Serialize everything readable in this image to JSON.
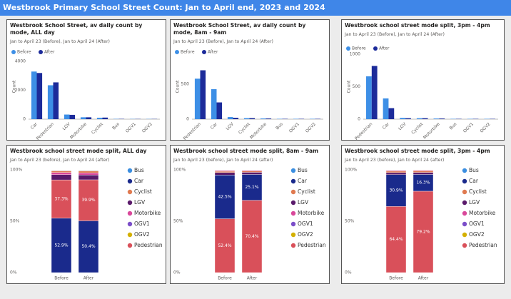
{
  "page_title": "Westbrook Primary School Street Count: Jan to April end, 2023 and 2024",
  "chart_data": [
    {
      "type": "bar",
      "title": "Westbrook School Street, av daily count by mode, ALL day",
      "subtitle": "Jan to April 23 (Before), Jan to April 24 (After)",
      "y_label": "Count",
      "categories": [
        "Car",
        "Pedestrian",
        "LGV",
        "Motorbike",
        "Cyclist",
        "Bus",
        "OGV1",
        "OGV2"
      ],
      "series": [
        {
          "name": "Before",
          "color": "#3d8fe6",
          "values": [
            3300,
            2350,
            320,
            130,
            100,
            20,
            15,
            15
          ]
        },
        {
          "name": "After",
          "color": "#1c2b9a",
          "values": [
            3200,
            2550,
            300,
            130,
            110,
            20,
            15,
            15
          ]
        }
      ],
      "ylim": [
        0,
        4500
      ],
      "yticks": [
        0,
        2000,
        4000
      ]
    },
    {
      "type": "bar",
      "title": "Westbrook School Street, av daily count by mode, 8am - 9am",
      "subtitle": "Jan to April 23 (Before), Jan to April 24 (After)",
      "y_label": "Count",
      "categories": [
        "Pedestrian",
        "Car",
        "LGV",
        "Cyclist",
        "Motorbike",
        "Bus",
        "OGV1",
        "OGV2"
      ],
      "series": [
        {
          "name": "Before",
          "color": "#3d8fe6",
          "values": [
            580,
            430,
            30,
            15,
            10,
            5,
            5,
            5
          ]
        },
        {
          "name": "After",
          "color": "#1c2b9a",
          "values": [
            700,
            240,
            20,
            15,
            10,
            5,
            5,
            5
          ]
        }
      ],
      "ylim": [
        0,
        930
      ],
      "yticks": [
        0,
        500
      ]
    },
    {
      "type": "bar",
      "title": "Westbrook school street mode split, 3pm - 4pm",
      "subtitle": "Jan to April 23 (Before), Jan to April 24 (After)",
      "y_label": "Count",
      "categories": [
        "Pedestrian",
        "Car",
        "LGV",
        "Cyclist",
        "Motorbike",
        "Bus",
        "OGV1",
        "OGV2"
      ],
      "series": [
        {
          "name": "Before",
          "color": "#3d8fe6",
          "values": [
            660,
            320,
            20,
            15,
            10,
            5,
            5,
            5
          ]
        },
        {
          "name": "After",
          "color": "#1c2b9a",
          "values": [
            820,
            170,
            15,
            15,
            10,
            5,
            5,
            5
          ]
        }
      ],
      "ylim": [
        0,
        1000
      ],
      "yticks": [
        0,
        500,
        1000
      ]
    },
    {
      "type": "stacked_bar_100",
      "title": "Westbrook school street mode split, ALL day",
      "subtitle": "Jan to April 23 (before), Jan to April 24 (after)",
      "categories": [
        "Before",
        "After"
      ],
      "series": [
        {
          "name": "Bus",
          "color": "#3b8ee0",
          "values": [
            0.4,
            0.4
          ]
        },
        {
          "name": "Car",
          "color": "#1a2a8c",
          "values": [
            52.9,
            50.4
          ],
          "value_labels": [
            "52.9%",
            "50.4%"
          ]
        },
        {
          "name": "Cyclist",
          "color": "#e07a50",
          "values": [
            1.6,
            1.8
          ]
        },
        {
          "name": "LGV",
          "color": "#5a1a6b",
          "values": [
            5.1,
            4.7
          ]
        },
        {
          "name": "Motorbike",
          "color": "#d9479a",
          "values": [
            2.1,
            2.1
          ]
        },
        {
          "name": "OGV1",
          "color": "#7b4ec9",
          "values": [
            0.3,
            0.35
          ]
        },
        {
          "name": "OGV2",
          "color": "#d4b000",
          "values": [
            0.3,
            0.35
          ]
        },
        {
          "name": "Pedestrian",
          "color": "#d9505a",
          "values": [
            37.3,
            39.9
          ],
          "value_labels": [
            "37.3%",
            "39.9%"
          ]
        }
      ],
      "ylim": [
        0,
        100
      ],
      "yticks": [
        {
          "value": 0,
          "label": "0%"
        },
        {
          "value": 50,
          "label": "50%"
        },
        {
          "value": 100,
          "label": "100%"
        }
      ]
    },
    {
      "type": "stacked_bar_100",
      "title": "Westbrook school street mode split, 8am - 9am",
      "subtitle": "Jan to April 23 (before), Jan to April 24 (after)",
      "categories": [
        "Before",
        "After"
      ],
      "series": [
        {
          "name": "Bus",
          "color": "#3b8ee0",
          "values": [
            0.3,
            0.2
          ]
        },
        {
          "name": "Car",
          "color": "#1a2a8c",
          "values": [
            42.5,
            25.1
          ],
          "value_labels": [
            "42.5%",
            "25.1%"
          ]
        },
        {
          "name": "Cyclist",
          "color": "#e07a50",
          "values": [
            1.2,
            1.2
          ]
        },
        {
          "name": "LGV",
          "color": "#5a1a6b",
          "values": [
            2.5,
            2.1
          ]
        },
        {
          "name": "Motorbike",
          "color": "#d9479a",
          "values": [
            0.8,
            0.8
          ]
        },
        {
          "name": "OGV1",
          "color": "#7b4ec9",
          "values": [
            0.2,
            0.1
          ]
        },
        {
          "name": "OGV2",
          "color": "#d4b000",
          "values": [
            0.1,
            0.1
          ]
        },
        {
          "name": "Pedestrian",
          "color": "#d9505a",
          "values": [
            52.4,
            70.4
          ],
          "value_labels": [
            "52.4%",
            "70.4%"
          ]
        }
      ],
      "ylim": [
        0,
        100
      ],
      "yticks": [
        {
          "value": 0,
          "label": "0%"
        },
        {
          "value": 50,
          "label": "50%"
        },
        {
          "value": 100,
          "label": "100%"
        }
      ]
    },
    {
      "type": "stacked_bar_100",
      "title": "Westbrook school street mode split, 3pm - 4pm",
      "subtitle": "Jan to April 23 (before), Jan to April 24 (after)",
      "categories": [
        "Before",
        "After"
      ],
      "series": [
        {
          "name": "Bus",
          "color": "#3b8ee0",
          "values": [
            0.3,
            0.2
          ]
        },
        {
          "name": "Car",
          "color": "#1a2a8c",
          "values": [
            30.9,
            16.3
          ],
          "value_labels": [
            "30.9%",
            "16.3%"
          ]
        },
        {
          "name": "Cyclist",
          "color": "#e07a50",
          "values": [
            1.4,
            1.5
          ]
        },
        {
          "name": "LGV",
          "color": "#5a1a6b",
          "values": [
            2.0,
            2.0
          ]
        },
        {
          "name": "Motorbike",
          "color": "#d9479a",
          "values": [
            0.8,
            0.7
          ]
        },
        {
          "name": "OGV1",
          "color": "#7b4ec9",
          "values": [
            0.1,
            0.05
          ]
        },
        {
          "name": "OGV2",
          "color": "#d4b000",
          "values": [
            0.1,
            0.05
          ]
        },
        {
          "name": "Pedestrian",
          "color": "#d9505a",
          "values": [
            64.4,
            79.2
          ],
          "value_labels": [
            "64.4%",
            "79.2%"
          ]
        }
      ],
      "ylim": [
        0,
        100
      ],
      "yticks": [
        {
          "value": 0,
          "label": "0%"
        },
        {
          "value": 50,
          "label": "50%"
        },
        {
          "value": 100,
          "label": "100%"
        }
      ]
    }
  ]
}
